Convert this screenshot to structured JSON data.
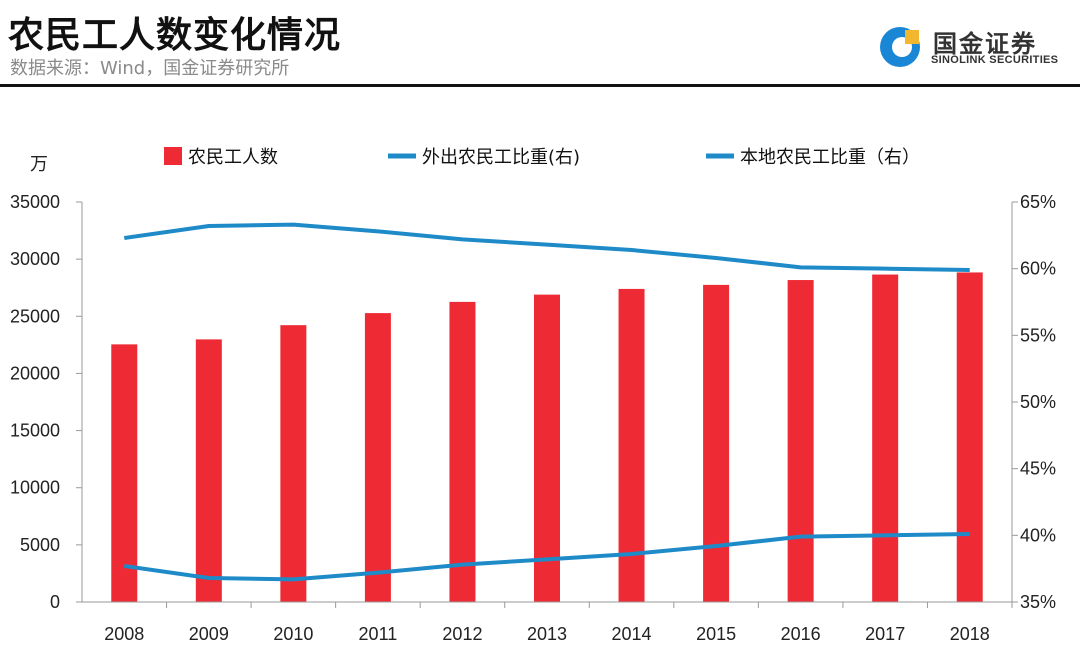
{
  "header": {
    "title": "农民工人数变化情况",
    "source": "数据来源：Wind，国金证券研究所"
  },
  "logo": {
    "name_cn": "国金证券",
    "name_en": "SINOLINK SECURITIES"
  },
  "colors": {
    "bar": "#ee2a35",
    "line": "#1f8ac8",
    "logo_blue": "#1a86d6",
    "logo_gold": "#f2b62f"
  },
  "chart_data": {
    "type": "bar",
    "title": "农民工人数变化情况",
    "ylabel": "万",
    "categories": [
      "2008",
      "2009",
      "2010",
      "2011",
      "2012",
      "2013",
      "2014",
      "2015",
      "2016",
      "2017",
      "2018"
    ],
    "ylim": [
      0,
      35000
    ],
    "y2lim": [
      35,
      65
    ],
    "yticks": [
      "35000",
      "30000",
      "25000",
      "20000",
      "15000",
      "10000",
      "5000",
      "0"
    ],
    "y2ticks": [
      "65%",
      "60%",
      "55%",
      "50%",
      "45%",
      "40%",
      "35%"
    ],
    "legend_position": "top",
    "series": [
      {
        "name": "农民工人数",
        "kind": "bar",
        "axis": "left",
        "values": [
          22542,
          22978,
          24223,
          25278,
          26261,
          26894,
          27395,
          27747,
          28171,
          28652,
          28836
        ]
      },
      {
        "name": "外出农民工比重(右)",
        "kind": "line",
        "axis": "right",
        "values": [
          62.3,
          63.2,
          63.3,
          62.8,
          62.2,
          61.8,
          61.4,
          60.8,
          60.1,
          60.0,
          59.9
        ]
      },
      {
        "name": "本地农民工比重（右）",
        "kind": "line",
        "axis": "right",
        "values": [
          37.7,
          36.8,
          36.7,
          37.2,
          37.8,
          38.2,
          38.6,
          39.2,
          39.9,
          40.0,
          40.1
        ]
      }
    ]
  }
}
